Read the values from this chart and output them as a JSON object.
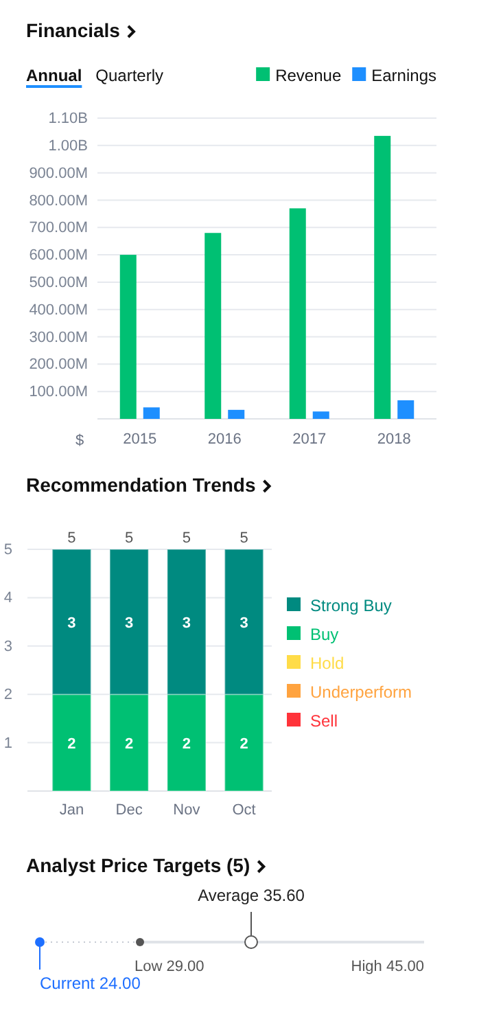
{
  "chart_data": [
    {
      "type": "bar",
      "title": "Financials",
      "annotations": [
        "Annual",
        "Quarterly"
      ],
      "ylabel": "$",
      "categories": [
        "2015",
        "2016",
        "2017",
        "2018"
      ],
      "series": [
        {
          "name": "Revenue",
          "color": "#00c073",
          "values": [
            600000000,
            680000000,
            770000000,
            1035000000
          ]
        },
        {
          "name": "Earnings",
          "color": "#1e8fff",
          "values": [
            42000000,
            33000000,
            27000000,
            68000000
          ]
        }
      ],
      "ylim": [
        0,
        1100000000
      ],
      "yticks": [
        {
          "value": 100000000,
          "label": "100.00M"
        },
        {
          "value": 200000000,
          "label": "200.00M"
        },
        {
          "value": 300000000,
          "label": "300.00M"
        },
        {
          "value": 400000000,
          "label": "400.00M"
        },
        {
          "value": 500000000,
          "label": "500.00M"
        },
        {
          "value": 600000000,
          "label": "600.00M"
        },
        {
          "value": 700000000,
          "label": "700.00M"
        },
        {
          "value": 800000000,
          "label": "800.00M"
        },
        {
          "value": 900000000,
          "label": "900.00M"
        },
        {
          "value": 1000000000,
          "label": "1.00B"
        },
        {
          "value": 1100000000,
          "label": "1.10B"
        }
      ],
      "grid": "y",
      "legend": "top right"
    },
    {
      "type": "bar",
      "title": "Recommendation Trends",
      "stacked": true,
      "categories": [
        "Jan",
        "Dec",
        "Nov",
        "Oct"
      ],
      "series": [
        {
          "name": "Buy",
          "color": "#00c073",
          "values": [
            2,
            2,
            2,
            2
          ],
          "value_labels": [
            "2",
            "2",
            "2",
            "2"
          ]
        },
        {
          "name": "Strong Buy",
          "color": "#008a80",
          "values": [
            3,
            3,
            3,
            3
          ],
          "value_labels": [
            "3",
            "3",
            "3",
            "3"
          ]
        },
        {
          "name": "Hold",
          "color": "#ffdc48",
          "values": [
            0,
            0,
            0,
            0
          ],
          "value_labels": [
            null,
            null,
            null,
            null
          ]
        },
        {
          "name": "Underperform",
          "color": "#ffa33f",
          "values": [
            0,
            0,
            0,
            0
          ],
          "value_labels": [
            null,
            null,
            null,
            null
          ]
        },
        {
          "name": "Sell",
          "color": "#ff333a",
          "values": [
            0,
            0,
            0,
            0
          ],
          "value_labels": [
            null,
            null,
            null,
            null
          ]
        }
      ],
      "totals": [
        "5",
        "5",
        "5",
        "5"
      ],
      "ylim": [
        0,
        5
      ],
      "yticks": [
        1,
        2,
        3,
        4,
        5
      ],
      "grid": "y",
      "legend": "right"
    },
    {
      "type": "other",
      "title": "Analyst Price Targets (5)",
      "annotations": [
        "Current 24.00",
        "Low 29.00",
        "Average 35.60",
        "High 45.00"
      ]
    }
  ]
}
